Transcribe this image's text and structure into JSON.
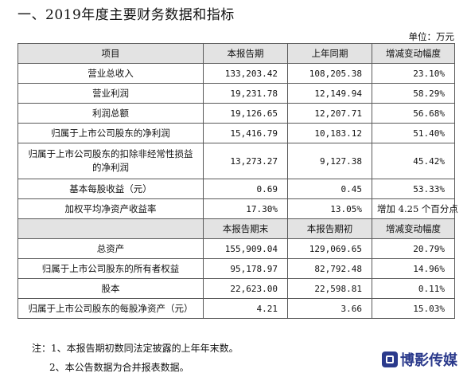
{
  "heading": "一、2019年度主要财务数据和指标",
  "unit_label": "单位：万元",
  "header1": [
    "项目",
    "本报告期",
    "上年同期",
    "增减变动幅度"
  ],
  "rows1": [
    {
      "label": "营业总收入",
      "current": "133,203.42",
      "previous": "108,205.38",
      "change": "23.10%"
    },
    {
      "label": "营业利润",
      "current": "19,231.78",
      "previous": "12,149.94",
      "change": "58.29%"
    },
    {
      "label": "利润总额",
      "current": "19,126.65",
      "previous": "12,207.71",
      "change": "56.68%"
    },
    {
      "label": "归属于上市公司股东的净利润",
      "current": "15,416.79",
      "previous": "10,183.12",
      "change": "51.40%"
    },
    {
      "label_line1": "归属于上市公司股东的扣除非经常性损益",
      "label_line2": "的净利润",
      "current": "13,273.27",
      "previous": "9,127.38",
      "change": "45.42%"
    },
    {
      "label": "基本每股收益（元）",
      "current": "0.69",
      "previous": "0.45",
      "change": "53.33%"
    },
    {
      "label": "加权平均净资产收益率",
      "current": "17.30%",
      "previous": "13.05%",
      "change": "增加 4.25 个百分点"
    }
  ],
  "header2": [
    "",
    "本报告期末",
    "本报告期初",
    "增减变动幅度"
  ],
  "rows2": [
    {
      "label": "总资产",
      "current": "155,909.04",
      "previous": "129,069.65",
      "change": "20.79%"
    },
    {
      "label": "归属于上市公司股东的所有者权益",
      "current": "95,178.97",
      "previous": "82,792.48",
      "change": "14.96%"
    },
    {
      "label": "股本",
      "current": "22,623.00",
      "previous": "22,598.81",
      "change": "0.11%"
    },
    {
      "label": "归属于上市公司股东的每股净资产（元）",
      "current": "4.21",
      "previous": "3.66",
      "change": "15.03%"
    }
  ],
  "notes": [
    "注：1、本报告期初数同法定披露的上年年末数。",
    "2、本公告数据为合并报表数据。"
  ],
  "watermark": "博影传媒"
}
